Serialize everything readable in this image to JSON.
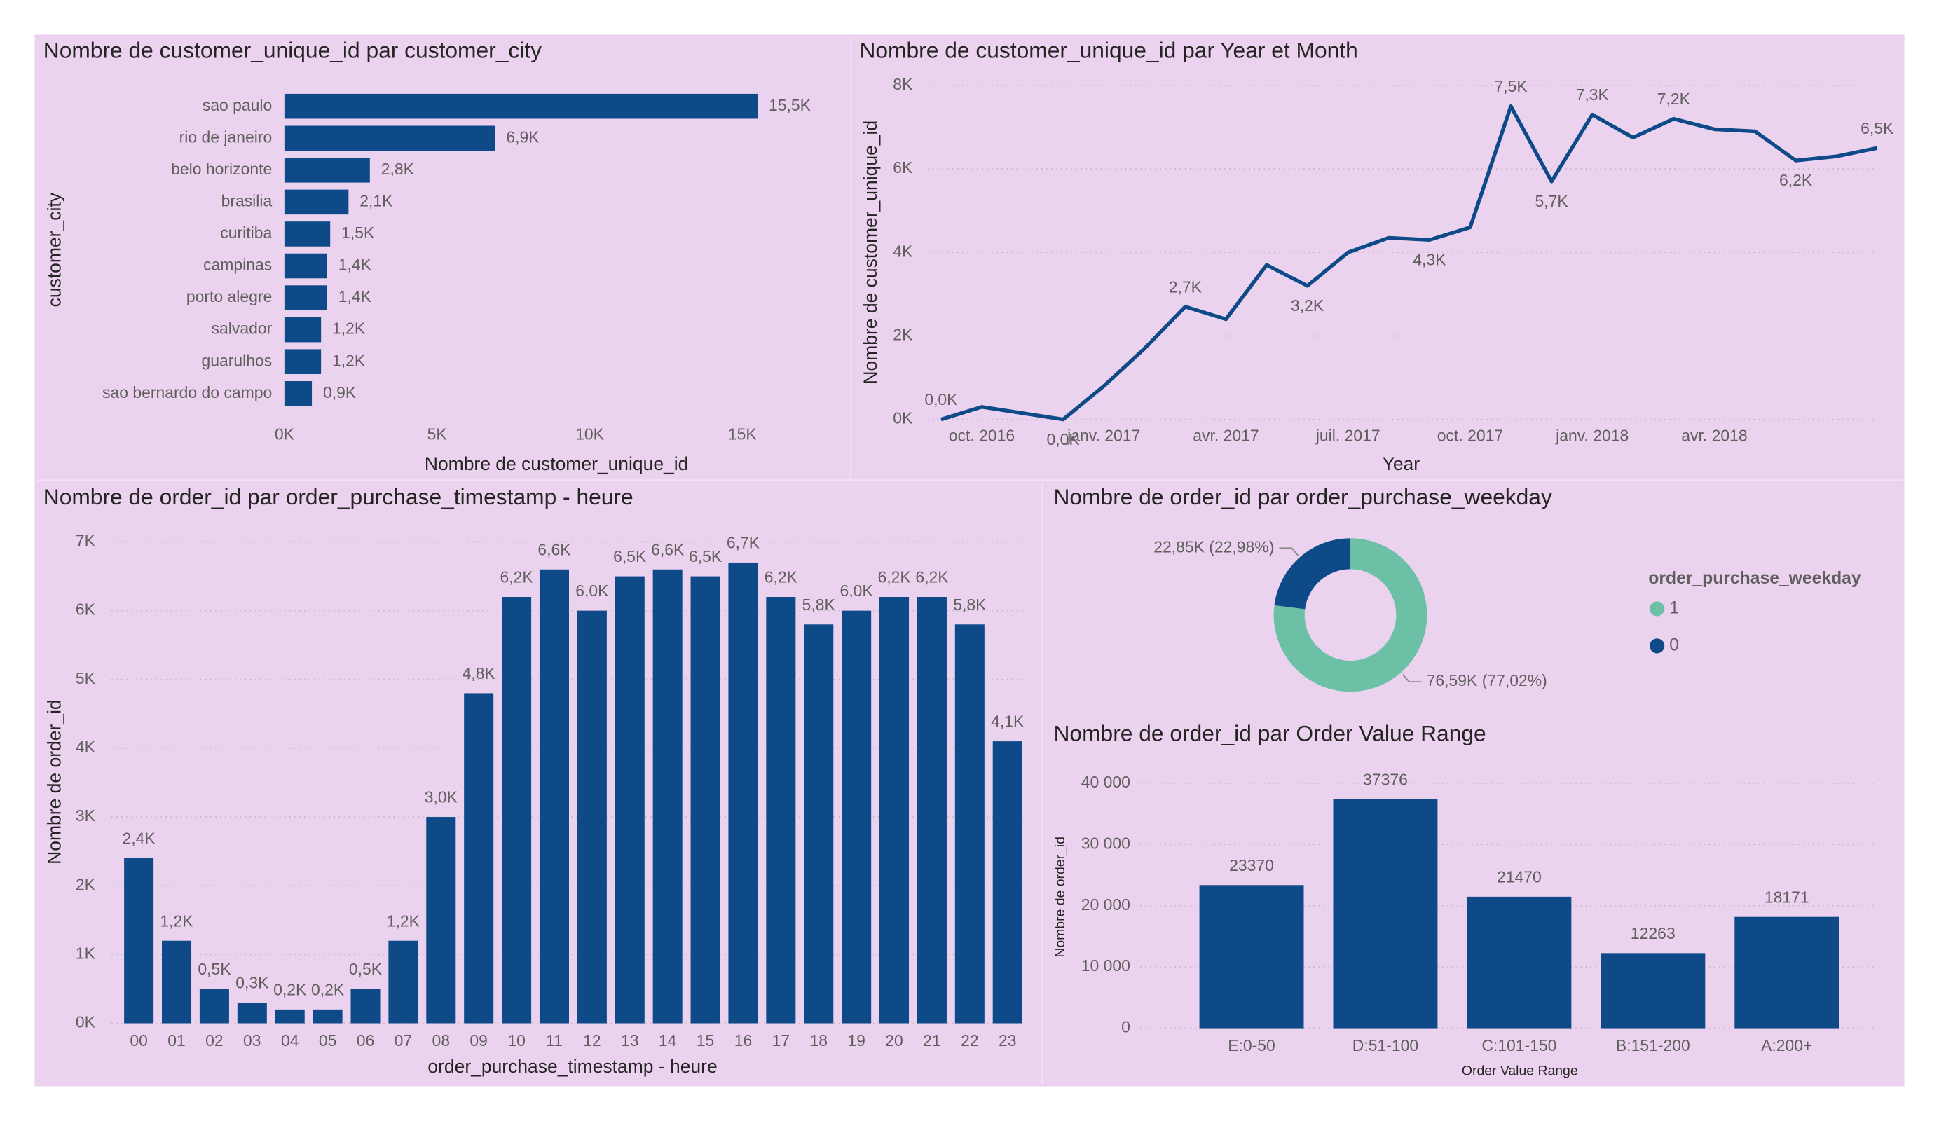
{
  "chart_data": [
    {
      "type": "bar",
      "orientation": "horizontal",
      "title": "Nombre de customer_unique_id par customer_city",
      "x_label": "Nombre de customer_unique_id",
      "y_label": "customer_city",
      "categories": [
        "sao paulo",
        "rio de janeiro",
        "belo horizonte",
        "brasilia",
        "curitiba",
        "campinas",
        "porto alegre",
        "salvador",
        "guarulhos",
        "sao bernardo do campo"
      ],
      "values": [
        15500,
        6900,
        2800,
        2100,
        1500,
        1400,
        1400,
        1200,
        1200,
        900
      ],
      "value_labels": [
        "15,5K",
        "6,9K",
        "2,8K",
        "2,1K",
        "1,5K",
        "1,4K",
        "1,4K",
        "1,2K",
        "1,2K",
        "0,9K"
      ],
      "color": "#0D4A87",
      "xlim": [
        0,
        17500
      ],
      "xticks": [
        {
          "value": 0,
          "label": "0K"
        },
        {
          "value": 5000,
          "label": "5K"
        },
        {
          "value": 10000,
          "label": "10K"
        },
        {
          "value": 15000,
          "label": "15K"
        }
      ],
      "grid": false
    },
    {
      "type": "line",
      "title": "Nombre de customer_unique_id par Year et Month",
      "x_label": "Year",
      "y_label": "Nombre de customer_unique_id",
      "x": [
        "2016-09",
        "2016-10",
        "2016-12",
        "2017-01",
        "2017-02",
        "2017-03",
        "2017-04",
        "2017-05",
        "2017-06",
        "2017-07",
        "2017-08",
        "2017-09",
        "2017-10",
        "2017-11",
        "2017-12",
        "2018-01",
        "2018-02",
        "2018-03",
        "2018-04",
        "2018-05",
        "2018-06",
        "2018-07",
        "2018-08"
      ],
      "values": [
        0,
        300,
        0,
        800,
        1700,
        2700,
        2400,
        3700,
        3200,
        4000,
        4350,
        4300,
        4600,
        7500,
        5700,
        7300,
        6750,
        7200,
        6950,
        6900,
        6200,
        6300,
        6500
      ],
      "value_labels": [
        "0,0K",
        null,
        "0,0K",
        null,
        null,
        "2,7K",
        null,
        null,
        "3,2K",
        null,
        null,
        "4,3K",
        null,
        "7,5K",
        "5,7K",
        "7,3K",
        null,
        "7,2K",
        null,
        null,
        "6,2K",
        null,
        "6,5K"
      ],
      "color": "#0D4A87",
      "xlim": [
        "2016-09",
        "2018-08"
      ],
      "xticks": [
        {
          "value": "2016-10",
          "label": "oct. 2016"
        },
        {
          "value": "2017-01",
          "label": "janv. 2017"
        },
        {
          "value": "2017-04",
          "label": "avr. 2017"
        },
        {
          "value": "2017-07",
          "label": "juil. 2017"
        },
        {
          "value": "2017-10",
          "label": "oct. 2017"
        },
        {
          "value": "2018-01",
          "label": "janv. 2018"
        },
        {
          "value": "2018-04",
          "label": "avr. 2018"
        }
      ],
      "ylim": [
        0,
        8000
      ],
      "yticks": [
        {
          "value": 0,
          "label": "0K"
        },
        {
          "value": 2000,
          "label": "2K"
        },
        {
          "value": 4000,
          "label": "4K"
        },
        {
          "value": 6000,
          "label": "6K"
        },
        {
          "value": 8000,
          "label": "8K"
        }
      ],
      "grid": true
    },
    {
      "type": "bar",
      "orientation": "vertical",
      "title": "Nombre de order_id par order_purchase_timestamp - heure",
      "x_label": "order_purchase_timestamp - heure",
      "y_label": "Nombre de order_id",
      "categories": [
        "00",
        "01",
        "02",
        "03",
        "04",
        "05",
        "06",
        "07",
        "08",
        "09",
        "10",
        "11",
        "12",
        "13",
        "14",
        "15",
        "16",
        "17",
        "18",
        "19",
        "20",
        "21",
        "22",
        "23"
      ],
      "values": [
        2400,
        1200,
        500,
        300,
        200,
        200,
        500,
        1200,
        3000,
        4800,
        6200,
        6600,
        6000,
        6500,
        6600,
        6500,
        6700,
        6200,
        5800,
        6000,
        6200,
        6200,
        5800,
        4100
      ],
      "value_labels": [
        "2,4K",
        "1,2K",
        "0,5K",
        "0,3K",
        "0,2K",
        "0,2K",
        "0,5K",
        "1,2K",
        "3,0K",
        "4,8K",
        "6,2K",
        "6,6K",
        "6,0K",
        "6,5K",
        "6,6K",
        "6,5K",
        "6,7K",
        "6,2K",
        "5,8K",
        "6,0K",
        "6,2K",
        "6,2K",
        "5,8K",
        "4,1K"
      ],
      "color": "#0D4A87",
      "ylim": [
        0,
        7000
      ],
      "yticks": [
        {
          "value": 0,
          "label": "0K"
        },
        {
          "value": 1000,
          "label": "1K"
        },
        {
          "value": 2000,
          "label": "2K"
        },
        {
          "value": 3000,
          "label": "3K"
        },
        {
          "value": 4000,
          "label": "4K"
        },
        {
          "value": 5000,
          "label": "5K"
        },
        {
          "value": 6000,
          "label": "6K"
        },
        {
          "value": 7000,
          "label": "7K"
        }
      ],
      "grid": true
    },
    {
      "type": "donut",
      "title": "Nombre de order_id par order_purchase_weekday",
      "legend_title": "order_purchase_weekday",
      "categories": [
        "1",
        "0"
      ],
      "values": [
        76590,
        22850
      ],
      "value_labels": [
        "76,59K (77,02%)",
        "22,85K (22,98%)"
      ],
      "colors": [
        "#6CC0A6",
        "#0D4A87"
      ],
      "legend": "right"
    },
    {
      "type": "bar",
      "orientation": "vertical",
      "title": "Nombre de order_id par Order Value Range",
      "x_label": "Order Value Range",
      "y_label": "Nombre de order_id",
      "categories": [
        "E:0-50",
        "D:51-100",
        "C:101-150",
        "B:151-200",
        "A:200+"
      ],
      "values": [
        23370,
        37376,
        21470,
        12263,
        18171
      ],
      "color": "#0D4A87",
      "ylim": [
        0,
        40000
      ],
      "yticks": [
        0,
        {
          "value": 10000,
          "label": "10 000"
        },
        {
          "value": 20000,
          "label": "20 000"
        },
        {
          "value": 30000,
          "label": "30 000"
        },
        {
          "value": 40000,
          "label": "40 000"
        }
      ],
      "grid": true
    }
  ]
}
